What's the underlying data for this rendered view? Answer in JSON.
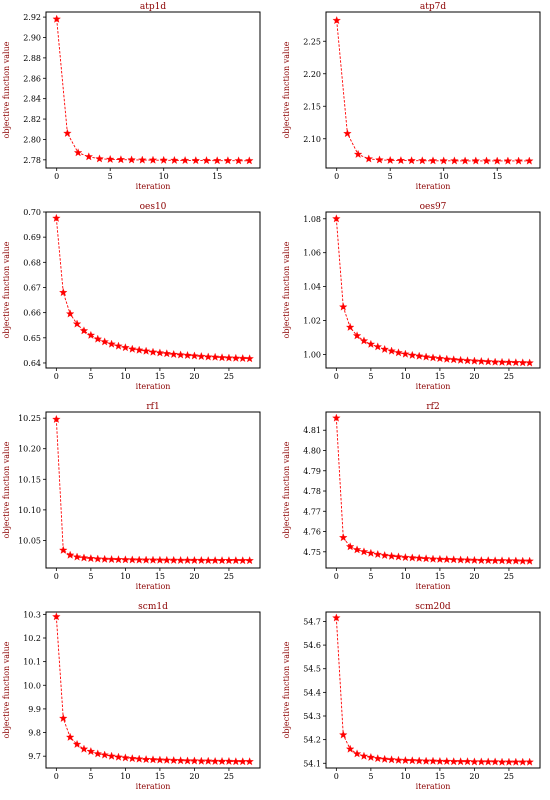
{
  "chart_data": [
    {
      "type": "line",
      "title": "atp1d",
      "xlabel": "iteration",
      "ylabel": "objective function value",
      "x": [
        0,
        1,
        2,
        3,
        4,
        5,
        6,
        7,
        8,
        9,
        10,
        11,
        12,
        13,
        14,
        15,
        16,
        17,
        18
      ],
      "series": [
        {
          "values": [
            2.918,
            2.806,
            2.787,
            2.783,
            2.781,
            2.7805,
            2.7802,
            2.78,
            2.7798,
            2.7797,
            2.7796,
            2.7795,
            2.7794,
            2.7793,
            2.7793,
            2.7792,
            2.7792,
            2.7791,
            2.7791
          ]
        }
      ],
      "xlim": [
        -1,
        19
      ],
      "ylim": [
        2.772,
        2.925
      ],
      "xticks": [
        0,
        5,
        10,
        15
      ],
      "yticks": [
        2.78,
        2.8,
        2.82,
        2.84,
        2.86,
        2.88,
        2.9,
        2.92
      ],
      "xtick_labels": [
        "0",
        "5",
        "10",
        "15"
      ],
      "ytick_labels": [
        "2.78",
        "2.80",
        "2.82",
        "2.84",
        "2.86",
        "2.88",
        "2.90",
        "2.92"
      ],
      "color": "#ff0000",
      "marker": "star",
      "linestyle": "dashed",
      "grid": false
    },
    {
      "type": "line",
      "title": "atp7d",
      "xlabel": "iteration",
      "ylabel": "objective function value",
      "x": [
        0,
        1,
        2,
        3,
        4,
        5,
        6,
        7,
        8,
        9,
        10,
        11,
        12,
        13,
        14,
        15,
        16,
        17,
        18
      ],
      "series": [
        {
          "values": [
            2.282,
            2.108,
            2.076,
            2.069,
            2.0675,
            2.0668,
            2.0665,
            2.0663,
            2.0662,
            2.0661,
            2.066,
            2.066,
            2.0659,
            2.0659,
            2.0659,
            2.0658,
            2.0658,
            2.0658,
            2.0658
          ]
        }
      ],
      "xlim": [
        -1,
        19
      ],
      "ylim": [
        2.055,
        2.295
      ],
      "xticks": [
        0,
        5,
        10,
        15
      ],
      "yticks": [
        2.1,
        2.15,
        2.2,
        2.25
      ],
      "xtick_labels": [
        "0",
        "5",
        "10",
        "15"
      ],
      "ytick_labels": [
        "2.10",
        "2.15",
        "2.20",
        "2.25"
      ],
      "color": "#ff0000",
      "marker": "star",
      "linestyle": "dashed",
      "grid": false
    },
    {
      "type": "line",
      "title": "oes10",
      "xlabel": "iteration",
      "ylabel": "objective function value",
      "x": [
        0,
        1,
        2,
        3,
        4,
        5,
        6,
        7,
        8,
        9,
        10,
        11,
        12,
        13,
        14,
        15,
        16,
        17,
        18,
        19,
        20,
        21,
        22,
        23,
        24,
        25,
        26,
        27,
        28
      ],
      "series": [
        {
          "values": [
            0.6975,
            0.668,
            0.6595,
            0.6555,
            0.6528,
            0.651,
            0.6495,
            0.6484,
            0.6475,
            0.6467,
            0.6461,
            0.6455,
            0.6451,
            0.6447,
            0.6443,
            0.644,
            0.6437,
            0.6434,
            0.6432,
            0.643,
            0.6428,
            0.6426,
            0.6424,
            0.6423,
            0.6421,
            0.642,
            0.6419,
            0.6418,
            0.6417
          ]
        }
      ],
      "xlim": [
        -1.5,
        29.5
      ],
      "ylim": [
        0.638,
        0.7
      ],
      "xticks": [
        0,
        5,
        10,
        15,
        20,
        25
      ],
      "yticks": [
        0.64,
        0.65,
        0.66,
        0.67,
        0.68,
        0.69,
        0.7
      ],
      "xtick_labels": [
        "0",
        "5",
        "10",
        "15",
        "20",
        "25"
      ],
      "ytick_labels": [
        "0.64",
        "0.65",
        "0.66",
        "0.67",
        "0.68",
        "0.69",
        "0.70"
      ],
      "color": "#ff0000",
      "marker": "star",
      "linestyle": "dashed",
      "grid": false
    },
    {
      "type": "line",
      "title": "oes97",
      "xlabel": "iteration",
      "ylabel": "objective function value",
      "x": [
        0,
        1,
        2,
        3,
        4,
        5,
        6,
        7,
        8,
        9,
        10,
        11,
        12,
        13,
        14,
        15,
        16,
        17,
        18,
        19,
        20,
        21,
        22,
        23,
        24,
        25,
        26,
        27,
        28
      ],
      "series": [
        {
          "values": [
            1.08,
            1.028,
            1.016,
            1.011,
            1.008,
            1.006,
            1.0045,
            1.003,
            1.002,
            1.001,
            1.0002,
            0.9995,
            0.999,
            0.9985,
            0.998,
            0.9976,
            0.9972,
            0.9969,
            0.9966,
            0.9963,
            0.9961,
            0.9959,
            0.9957,
            0.9955,
            0.9954,
            0.9953,
            0.9952,
            0.9951,
            0.995
          ]
        }
      ],
      "xlim": [
        -1.5,
        29.5
      ],
      "ylim": [
        0.992,
        1.084
      ],
      "xticks": [
        0,
        5,
        10,
        15,
        20,
        25
      ],
      "yticks": [
        1.0,
        1.02,
        1.04,
        1.06,
        1.08
      ],
      "xtick_labels": [
        "0",
        "5",
        "10",
        "15",
        "20",
        "25"
      ],
      "ytick_labels": [
        "1.00",
        "1.02",
        "1.04",
        "1.06",
        "1.08"
      ],
      "color": "#ff0000",
      "marker": "star",
      "linestyle": "dashed",
      "grid": false
    },
    {
      "type": "line",
      "title": "rf1",
      "xlabel": "iteration",
      "ylabel": "objective function value",
      "x": [
        0,
        1,
        2,
        3,
        4,
        5,
        6,
        7,
        8,
        9,
        10,
        11,
        12,
        13,
        14,
        15,
        16,
        17,
        18,
        19,
        20,
        21,
        22,
        23,
        24,
        25,
        26,
        27,
        28
      ],
      "series": [
        {
          "values": [
            10.248,
            10.034,
            10.026,
            10.023,
            10.0215,
            10.0205,
            10.0198,
            10.0193,
            10.019,
            10.0187,
            10.0185,
            10.0183,
            10.0181,
            10.018,
            10.0179,
            10.0178,
            10.0177,
            10.0176,
            10.0175,
            10.0175,
            10.0174,
            10.0174,
            10.0173,
            10.0173,
            10.0172,
            10.0172,
            10.0172,
            10.0171,
            10.0171
          ]
        }
      ],
      "xlim": [
        -1.5,
        29.5
      ],
      "ylim": [
        10.005,
        10.26
      ],
      "xticks": [
        0,
        5,
        10,
        15,
        20,
        25
      ],
      "yticks": [
        10.05,
        10.1,
        10.15,
        10.2,
        10.25
      ],
      "xtick_labels": [
        "0",
        "5",
        "10",
        "15",
        "20",
        "25"
      ],
      "ytick_labels": [
        "10.05",
        "10.10",
        "10.15",
        "10.20",
        "10.25"
      ],
      "color": "#ff0000",
      "marker": "star",
      "linestyle": "dashed",
      "grid": false
    },
    {
      "type": "line",
      "title": "rf2",
      "xlabel": "iteration",
      "ylabel": "objective function value",
      "x": [
        0,
        1,
        2,
        3,
        4,
        5,
        6,
        7,
        8,
        9,
        10,
        11,
        12,
        13,
        14,
        15,
        16,
        17,
        18,
        19,
        20,
        21,
        22,
        23,
        24,
        25,
        26,
        27,
        28
      ],
      "series": [
        {
          "values": [
            4.816,
            4.757,
            4.7525,
            4.751,
            4.75,
            4.7493,
            4.7487,
            4.7482,
            4.7478,
            4.7475,
            4.7472,
            4.747,
            4.7468,
            4.7466,
            4.7464,
            4.7463,
            4.7462,
            4.7461,
            4.746,
            4.7459,
            4.7458,
            4.7457,
            4.7457,
            4.7456,
            4.7456,
            4.7455,
            4.7455,
            4.7454,
            4.7454
          ]
        }
      ],
      "xlim": [
        -1.5,
        29.5
      ],
      "ylim": [
        4.742,
        4.819
      ],
      "xticks": [
        0,
        5,
        10,
        15,
        20,
        25
      ],
      "yticks": [
        4.75,
        4.76,
        4.77,
        4.78,
        4.79,
        4.8,
        4.81
      ],
      "xtick_labels": [
        "0",
        "5",
        "10",
        "15",
        "20",
        "25"
      ],
      "ytick_labels": [
        "4.75",
        "4.76",
        "4.77",
        "4.78",
        "4.79",
        "4.80",
        "4.81"
      ],
      "color": "#ff0000",
      "marker": "star",
      "linestyle": "dashed",
      "grid": false
    },
    {
      "type": "line",
      "title": "scm1d",
      "xlabel": "iteration",
      "ylabel": "objective function value",
      "x": [
        0,
        1,
        2,
        3,
        4,
        5,
        6,
        7,
        8,
        9,
        10,
        11,
        12,
        13,
        14,
        15,
        16,
        17,
        18,
        19,
        20,
        21,
        22,
        23,
        24,
        25,
        26,
        27,
        28
      ],
      "series": [
        {
          "values": [
            10.29,
            9.86,
            9.78,
            9.75,
            9.73,
            9.72,
            9.71,
            9.705,
            9.7,
            9.696,
            9.693,
            9.69,
            9.688,
            9.686,
            9.685,
            9.684,
            9.683,
            9.682,
            9.681,
            9.68,
            9.68,
            9.679,
            9.679,
            9.678,
            9.678,
            9.678,
            9.677,
            9.677,
            9.677
          ]
        }
      ],
      "xlim": [
        -1.5,
        29.5
      ],
      "ylim": [
        9.65,
        10.31
      ],
      "xticks": [
        0,
        5,
        10,
        15,
        20,
        25
      ],
      "yticks": [
        9.7,
        9.8,
        9.9,
        10.0,
        10.1,
        10.2,
        10.3
      ],
      "xtick_labels": [
        "0",
        "5",
        "10",
        "15",
        "20",
        "25"
      ],
      "ytick_labels": [
        "9.7",
        "9.8",
        "9.9",
        "10.0",
        "10.1",
        "10.2",
        "10.3"
      ],
      "color": "#ff0000",
      "marker": "star",
      "linestyle": "dashed",
      "grid": false
    },
    {
      "type": "line",
      "title": "scm20d",
      "xlabel": "iteration",
      "ylabel": "objective function value",
      "x": [
        0,
        1,
        2,
        3,
        4,
        5,
        6,
        7,
        8,
        9,
        10,
        11,
        12,
        13,
        14,
        15,
        16,
        17,
        18,
        19,
        20,
        21,
        22,
        23,
        24,
        25,
        26,
        27,
        28
      ],
      "series": [
        {
          "values": [
            54.715,
            54.22,
            54.16,
            54.14,
            54.13,
            54.125,
            54.12,
            54.117,
            54.115,
            54.113,
            54.112,
            54.111,
            54.11,
            54.109,
            54.109,
            54.108,
            54.108,
            54.107,
            54.107,
            54.107,
            54.106,
            54.106,
            54.106,
            54.106,
            54.105,
            54.105,
            54.105,
            54.105,
            54.105
          ]
        }
      ],
      "xlim": [
        -1.5,
        29.5
      ],
      "ylim": [
        54.08,
        54.74
      ],
      "xticks": [
        0,
        5,
        10,
        15,
        20,
        25
      ],
      "yticks": [
        54.1,
        54.2,
        54.3,
        54.4,
        54.5,
        54.6,
        54.7
      ],
      "xtick_labels": [
        "0",
        "5",
        "10",
        "15",
        "20",
        "25"
      ],
      "ytick_labels": [
        "54.1",
        "54.2",
        "54.3",
        "54.4",
        "54.5",
        "54.6",
        "54.7"
      ],
      "color": "#ff0000",
      "marker": "star",
      "linestyle": "dashed",
      "grid": false
    }
  ]
}
